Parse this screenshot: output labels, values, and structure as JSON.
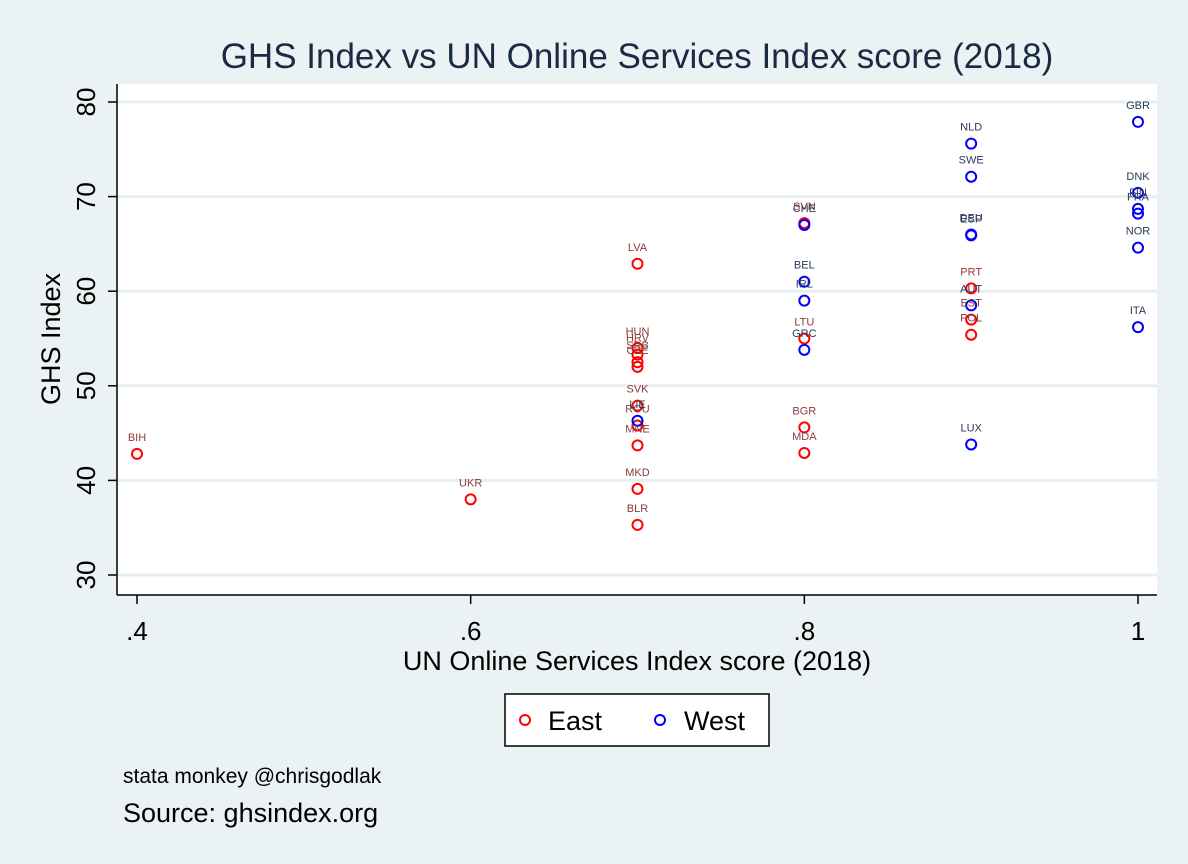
{
  "chart_data": {
    "type": "scatter",
    "title": "GHS Index vs UN Online Services Index score (2018)",
    "xlabel": "UN Online Services Index score (2018)",
    "ylabel": "GHS Index",
    "xlim": [
      0.4,
      1.0
    ],
    "ylim": [
      30,
      80
    ],
    "x_ticks": [
      0.4,
      0.6,
      0.8,
      1.0
    ],
    "x_tick_labels": [
      ".4",
      ".6",
      ".8",
      "1"
    ],
    "y_ticks": [
      30,
      40,
      50,
      60,
      70,
      80
    ],
    "y_tick_labels": [
      "30",
      "40",
      "50",
      "60",
      "70",
      "80"
    ],
    "grid": "horizontal",
    "legend_position": "bottom",
    "series": [
      {
        "name": "East",
        "color": "#ff0000",
        "label_color": "#8b3a3a",
        "points": [
          {
            "label": "BIH",
            "x": 0.4,
            "y": 42.8
          },
          {
            "label": "UKR",
            "x": 0.6,
            "y": 38.0
          },
          {
            "label": "LVA",
            "x": 0.7,
            "y": 62.9
          },
          {
            "label": "HUN",
            "x": 0.7,
            "y": 54.0
          },
          {
            "label": "HRV",
            "x": 0.7,
            "y": 53.3
          },
          {
            "label": "SRB",
            "x": 0.7,
            "y": 52.5
          },
          {
            "label": "CZE",
            "x": 0.7,
            "y": 52.0
          },
          {
            "label": "SVK",
            "x": 0.7,
            "y": 47.9
          },
          {
            "label": "ROU",
            "x": 0.7,
            "y": 45.8
          },
          {
            "label": "MNE",
            "x": 0.7,
            "y": 43.7
          },
          {
            "label": "MKD",
            "x": 0.7,
            "y": 39.1
          },
          {
            "label": "BLR",
            "x": 0.7,
            "y": 35.3
          },
          {
            "label": "SVN",
            "x": 0.8,
            "y": 67.2
          },
          {
            "label": "LTU",
            "x": 0.8,
            "y": 55.0
          },
          {
            "label": "BGR",
            "x": 0.8,
            "y": 45.6
          },
          {
            "label": "MDA",
            "x": 0.8,
            "y": 42.9
          },
          {
            "label": "PRT",
            "x": 0.9,
            "y": 60.3
          },
          {
            "label": "EST",
            "x": 0.9,
            "y": 57.0
          },
          {
            "label": "POL",
            "x": 0.9,
            "y": 55.4
          }
        ]
      },
      {
        "name": "West",
        "color": "#0000ff",
        "label_color": "#2a3a5a",
        "points": [
          {
            "label": "CHE",
            "x": 0.8,
            "y": 67.0
          },
          {
            "label": "BEL",
            "x": 0.8,
            "y": 61.0
          },
          {
            "label": "IRL",
            "x": 0.8,
            "y": 59.0
          },
          {
            "label": "GRC",
            "x": 0.8,
            "y": 53.8
          },
          {
            "label": "LIE",
            "x": 0.7,
            "y": 46.3
          },
          {
            "label": "NLD",
            "x": 0.9,
            "y": 75.6
          },
          {
            "label": "SWE",
            "x": 0.9,
            "y": 72.1
          },
          {
            "label": "DEU",
            "x": 0.9,
            "y": 66.0
          },
          {
            "label": "ESP",
            "x": 0.9,
            "y": 65.9
          },
          {
            "label": "AUT",
            "x": 0.9,
            "y": 58.5
          },
          {
            "label": "LUX",
            "x": 0.9,
            "y": 43.8
          },
          {
            "label": "GBR",
            "x": 1.0,
            "y": 77.9
          },
          {
            "label": "DNK",
            "x": 1.0,
            "y": 70.4
          },
          {
            "label": "FIN",
            "x": 1.0,
            "y": 68.7
          },
          {
            "label": "FRA",
            "x": 1.0,
            "y": 68.2
          },
          {
            "label": "NOR",
            "x": 1.0,
            "y": 64.6
          },
          {
            "label": "ITA",
            "x": 1.0,
            "y": 56.2
          }
        ]
      }
    ]
  },
  "notes": {
    "credit": "stata monkey @chrisgodlak",
    "source": "Source: ghsindex.org"
  }
}
